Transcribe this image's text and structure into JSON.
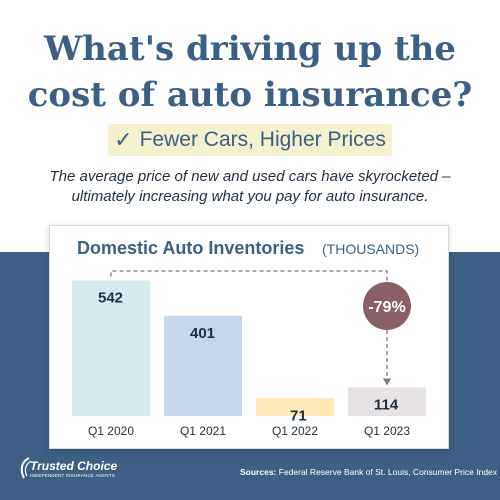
{
  "header": {
    "title_line1": "What's driving up the",
    "title_line2": "cost of auto insurance?",
    "subtitle": "Fewer Cars, Higher Prices",
    "subtitle_icon": "check-icon",
    "description_line1": "The average price of new and used cars have skyrocketed –",
    "description_line2": "ultimately increasing what you pay for auto insurance."
  },
  "chart_data": {
    "type": "bar",
    "title": "Domestic Auto Inventories",
    "unit_label": "(THOUSANDS)",
    "categories": [
      "Q1 2020",
      "Q1 2021",
      "Q1 2022",
      "Q1 2023"
    ],
    "values": [
      542,
      401,
      71,
      114
    ],
    "value_labels": [
      "542",
      "401",
      "71",
      "114"
    ],
    "bar_colors": [
      "#d5e9ee",
      "#c6d7ea",
      "#fbe9b8",
      "#e7e2e3"
    ],
    "annotation": {
      "text": "-79%",
      "from_category": "Q1 2020",
      "to_category": "Q1 2023",
      "color": "#8a5f66"
    },
    "ylim": [
      0,
      560
    ],
    "grid": false,
    "legend": "none"
  },
  "footer": {
    "logo_name": "Trusted Choice",
    "logo_tagline": "INDEPENDENT INSURANCE AGENTS",
    "sources_label": "Sources:",
    "sources_text": "Federal Reserve Bank of St. Louis,  Consumer Price Index"
  },
  "colors": {
    "brand_blue": "#3c5f83",
    "highlight": "#f5f0cf",
    "text_dark": "#1f2f40"
  }
}
